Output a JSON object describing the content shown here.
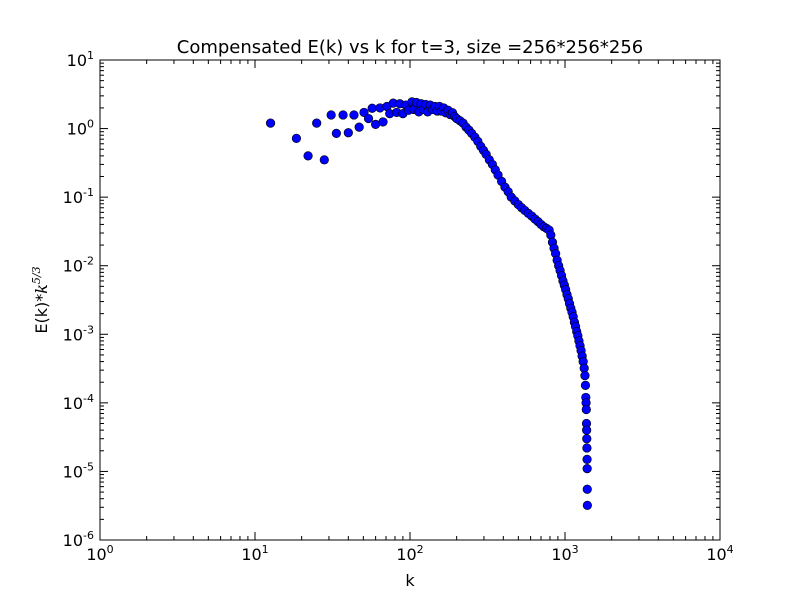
{
  "chart_data": {
    "type": "scatter",
    "title": "Compensated E(k) vs k for t=3, size =256*256*256",
    "xlabel": "k",
    "ylabel": "E(k)*k^5/3",
    "ylabel_base": "E(k)*",
    "ylabel_var": "k",
    "ylabel_exp": "5/3",
    "xscale": "log",
    "yscale": "log",
    "xlim": [
      1,
      10000
    ],
    "ylim": [
      1e-06,
      10
    ],
    "grid": false,
    "legend": "none",
    "marker_color": "#0000ff",
    "x_ticks": [
      {
        "value": 1,
        "base": "10",
        "exp": "0"
      },
      {
        "value": 10,
        "base": "10",
        "exp": "1"
      },
      {
        "value": 100,
        "base": "10",
        "exp": "2"
      },
      {
        "value": 1000,
        "base": "10",
        "exp": "3"
      },
      {
        "value": 10000,
        "base": "10",
        "exp": "4"
      }
    ],
    "y_ticks": [
      {
        "value": 1e-06,
        "base": "10",
        "exp": "-6"
      },
      {
        "value": 1e-05,
        "base": "10",
        "exp": "-5"
      },
      {
        "value": 0.0001,
        "base": "10",
        "exp": "-4"
      },
      {
        "value": 0.001,
        "base": "10",
        "exp": "-3"
      },
      {
        "value": 0.01,
        "base": "10",
        "exp": "-2"
      },
      {
        "value": 0.1,
        "base": "10",
        "exp": "-1"
      },
      {
        "value": 1,
        "base": "10",
        "exp": "0"
      },
      {
        "value": 10,
        "base": "10",
        "exp": "1"
      }
    ],
    "points": [
      [
        12.6,
        1.2
      ],
      [
        18.5,
        0.72
      ],
      [
        22,
        0.4
      ],
      [
        25,
        1.2
      ],
      [
        28,
        0.35
      ],
      [
        31,
        1.58
      ],
      [
        33.5,
        0.85
      ],
      [
        37,
        1.58
      ],
      [
        40,
        0.87
      ],
      [
        43.5,
        1.58
      ],
      [
        47,
        1.05
      ],
      [
        50.5,
        1.72
      ],
      [
        54,
        1.4
      ],
      [
        57,
        1.98
      ],
      [
        60,
        1.15
      ],
      [
        64,
        2.0
      ],
      [
        67,
        1.25
      ],
      [
        71,
        2.1
      ],
      [
        74,
        1.65
      ],
      [
        78,
        2.35
      ],
      [
        82,
        1.72
      ],
      [
        86,
        2.3
      ],
      [
        90,
        1.65
      ],
      [
        94,
        2.2
      ],
      [
        98,
        1.85
      ],
      [
        103,
        2.45
      ],
      [
        106,
        1.9
      ],
      [
        110,
        2.4
      ],
      [
        114,
        1.75
      ],
      [
        118,
        2.3
      ],
      [
        122,
        1.9
      ],
      [
        126,
        2.25
      ],
      [
        130,
        1.75
      ],
      [
        135,
        2.2
      ],
      [
        140,
        1.9
      ],
      [
        145,
        2.1
      ],
      [
        150,
        1.8
      ],
      [
        155,
        2.1
      ],
      [
        160,
        1.8
      ],
      [
        165,
        2.0
      ],
      [
        170,
        1.7
      ],
      [
        176,
        1.85
      ],
      [
        182,
        1.6
      ],
      [
        188,
        1.7
      ],
      [
        194,
        1.5
      ],
      [
        200,
        1.4
      ],
      [
        210,
        1.3
      ],
      [
        220,
        1.2
      ],
      [
        230,
        1.05
      ],
      [
        240,
        0.95
      ],
      [
        250,
        0.85
      ],
      [
        262,
        0.75
      ],
      [
        274,
        0.65
      ],
      [
        286,
        0.55
      ],
      [
        298,
        0.48
      ],
      [
        310,
        0.42
      ],
      [
        325,
        0.35
      ],
      [
        340,
        0.3
      ],
      [
        355,
        0.25
      ],
      [
        370,
        0.21
      ],
      [
        390,
        0.17
      ],
      [
        410,
        0.14
      ],
      [
        430,
        0.12
      ],
      [
        450,
        0.1
      ],
      [
        475,
        0.088
      ],
      [
        500,
        0.078
      ],
      [
        525,
        0.07
      ],
      [
        550,
        0.064
      ],
      [
        580,
        0.058
      ],
      [
        610,
        0.053
      ],
      [
        640,
        0.048
      ],
      [
        670,
        0.044
      ],
      [
        700,
        0.04
      ],
      [
        730,
        0.037
      ],
      [
        760,
        0.035
      ],
      [
        790,
        0.033
      ],
      [
        810,
        0.028
      ],
      [
        830,
        0.022
      ],
      [
        850,
        0.018
      ],
      [
        870,
        0.015
      ],
      [
        890,
        0.012
      ],
      [
        910,
        0.01
      ],
      [
        930,
        0.0085
      ],
      [
        950,
        0.0072
      ],
      [
        970,
        0.006
      ],
      [
        990,
        0.0052
      ],
      [
        1010,
        0.0045
      ],
      [
        1030,
        0.0038
      ],
      [
        1050,
        0.0033
      ],
      [
        1070,
        0.0028
      ],
      [
        1090,
        0.0024
      ],
      [
        1110,
        0.0021
      ],
      [
        1130,
        0.0018
      ],
      [
        1150,
        0.0015
      ],
      [
        1170,
        0.0013
      ],
      [
        1190,
        0.0011
      ],
      [
        1210,
        0.00095
      ],
      [
        1230,
        0.0008
      ],
      [
        1250,
        0.00068
      ],
      [
        1270,
        0.00058
      ],
      [
        1290,
        0.00048
      ],
      [
        1310,
        0.0004
      ],
      [
        1330,
        0.00032
      ],
      [
        1345,
        0.00025
      ],
      [
        1355,
        0.00018
      ],
      [
        1362,
        0.00012
      ],
      [
        1368,
        0.0001
      ],
      [
        1372,
        8e-05
      ],
      [
        1376,
        5e-05
      ],
      [
        1379,
        4e-05
      ],
      [
        1382,
        3e-05
      ],
      [
        1385,
        2.2e-05
      ],
      [
        1388,
        1.5e-05
      ],
      [
        1390,
        1.1e-05
      ],
      [
        1392,
        5.5e-06
      ],
      [
        1394,
        3.2e-06
      ]
    ]
  }
}
